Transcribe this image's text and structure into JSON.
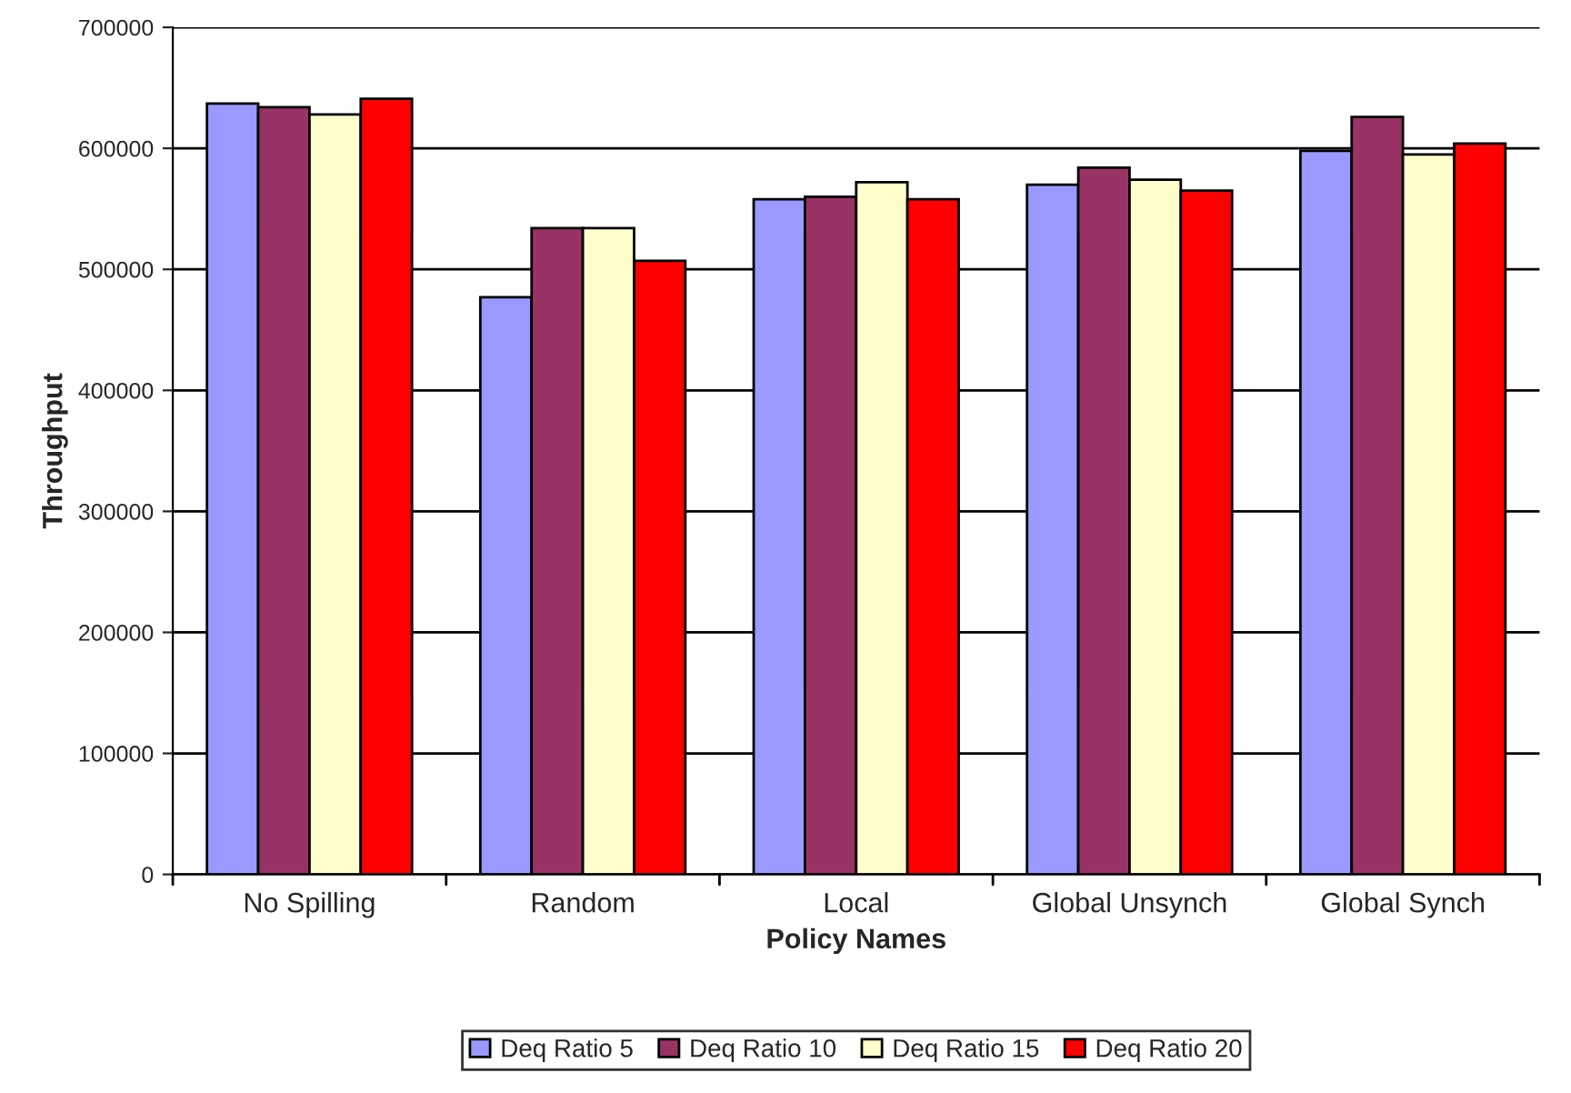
{
  "chart_data": {
    "type": "bar",
    "xlabel": "Policy Names",
    "ylabel": "Throughput",
    "categories": [
      "No Spilling",
      "Random",
      "Local",
      "Global Unsynch",
      "Global Synch"
    ],
    "series": [
      {
        "name": "Deq Ratio 5",
        "color": "#9999ff",
        "values": [
          637000,
          477000,
          558000,
          570000,
          598000
        ]
      },
      {
        "name": "Deq Ratio 10",
        "color": "#993366",
        "values": [
          634000,
          534000,
          560000,
          584000,
          626000
        ]
      },
      {
        "name": "Deq Ratio 15",
        "color": "#ffffcc",
        "values": [
          628000,
          534000,
          572000,
          574000,
          595000
        ]
      },
      {
        "name": "Deq Ratio 20",
        "color": "#ff0000",
        "values": [
          641000,
          507000,
          558000,
          565000,
          604000
        ]
      }
    ],
    "ylim": [
      0,
      700000
    ],
    "yticks": [
      0,
      100000,
      200000,
      300000,
      400000,
      500000,
      600000,
      700000
    ],
    "grid": "y",
    "legend": "bottom"
  }
}
